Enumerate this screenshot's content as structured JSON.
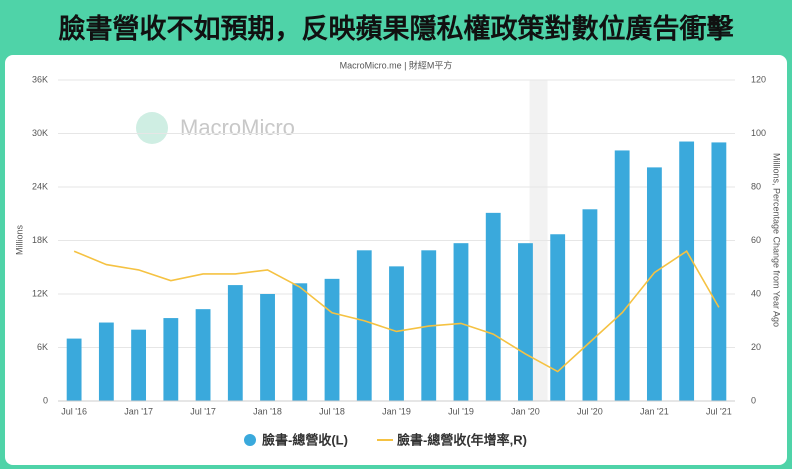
{
  "header": {
    "title": "臉書營收不如預期，反映蘋果隱私權政策對數位廣告衝擊"
  },
  "chart_data": {
    "type": "bar",
    "source": "MacroMicro.me | 財經M平方",
    "watermark": "MacroMicro",
    "ylabel": "Millions",
    "y2label": "Millions, Percentage Change from Year Ago",
    "categories": [
      "Jul '16",
      null,
      "Jan '17",
      null,
      "Jul '17",
      null,
      "Jan '18",
      null,
      "Jul '18",
      null,
      "Jan '19",
      null,
      "Jul '19",
      null,
      "Jan '20",
      null,
      "Jul '20",
      null,
      "Jan '21",
      null,
      "Jul '21"
    ],
    "series": [
      {
        "name": "臉書-總營收(L)",
        "color": "#3aa9dc",
        "type": "bar",
        "values": [
          7000,
          8800,
          8000,
          9300,
          10300,
          13000,
          12000,
          13200,
          13700,
          16900,
          15100,
          16900,
          17700,
          21100,
          17700,
          18700,
          21500,
          28100,
          26200,
          29100,
          29000
        ]
      },
      {
        "name": "臉書-總營收(年增率,R)",
        "color": "#f5c242",
        "type": "line",
        "axis": "y2",
        "values": [
          56,
          51,
          49,
          45,
          47.5,
          47.5,
          49,
          42.6,
          33,
          30,
          26,
          28,
          29,
          25,
          17.6,
          11,
          22,
          33,
          48,
          56,
          35
        ]
      }
    ],
    "ylim": [
      0,
      36000
    ],
    "yticks": [
      0,
      {
        "value": 6000,
        "label": "6K"
      },
      {
        "value": 12000,
        "label": "12K"
      },
      {
        "value": 18000,
        "label": "18K"
      },
      {
        "value": 24000,
        "label": "24K"
      },
      {
        "value": 30000,
        "label": "30K"
      },
      {
        "value": 36000,
        "label": "36K"
      }
    ],
    "y2lim": [
      0,
      120
    ],
    "y2ticks": [
      0,
      20,
      40,
      60,
      80,
      100,
      120
    ],
    "grid": true
  }
}
